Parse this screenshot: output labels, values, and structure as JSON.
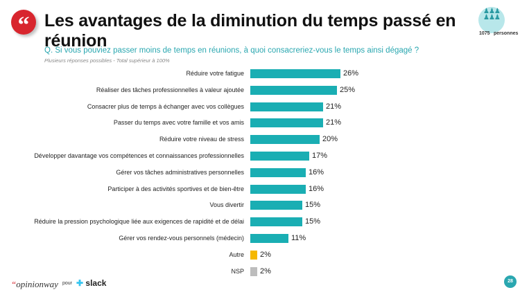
{
  "header": {
    "title": "Les avantages de la diminution du temps passé en réunion",
    "quote_icon": "“",
    "sample_count": "1075",
    "sample_unit": "personnes"
  },
  "chart_data": {
    "type": "bar",
    "orientation": "horizontal",
    "title": "Q. Si vous pouviez passer moins de temps en réunions, à quoi consacreriez-vous le temps ainsi dégagé ?",
    "subtitle": "Plusieurs réponses possibles - Total supérieur à 100%",
    "categories": [
      "Réduire votre fatigue",
      "Réaliser des tâches professionnelles à valeur ajoutée",
      "Consacrer plus de temps à échanger avec vos collègues",
      "Passer du temps avec votre famille et vos amis",
      "Réduire votre niveau de stress",
      "Développer davantage vos compétences et connaissances professionnelles",
      "Gérer vos tâches administratives personnelles",
      "Participer à des activités sportives et de bien-être",
      "Vous divertir",
      "Réduire la pression psychologique liée aux exigences de rapidité et de délai",
      "Gérer vos rendez-vous personnels (médecin)",
      "Autre",
      "NSP"
    ],
    "values": [
      26,
      25,
      21,
      21,
      20,
      17,
      16,
      16,
      15,
      15,
      11,
      2,
      2
    ],
    "value_labels": [
      "26%",
      "25%",
      "21%",
      "21%",
      "20%",
      "17%",
      "16%",
      "16%",
      "15%",
      "15%",
      "11%",
      "2%",
      "2%"
    ],
    "colors": [
      "#1aaeb3",
      "#1aaeb3",
      "#1aaeb3",
      "#1aaeb3",
      "#1aaeb3",
      "#1aaeb3",
      "#1aaeb3",
      "#1aaeb3",
      "#1aaeb3",
      "#1aaeb3",
      "#1aaeb3",
      "#f5b800",
      "#bdbdbd"
    ]
  },
  "footer": {
    "brand": "opinionway",
    "pour": "pour",
    "partner": "slack",
    "page": "28"
  }
}
